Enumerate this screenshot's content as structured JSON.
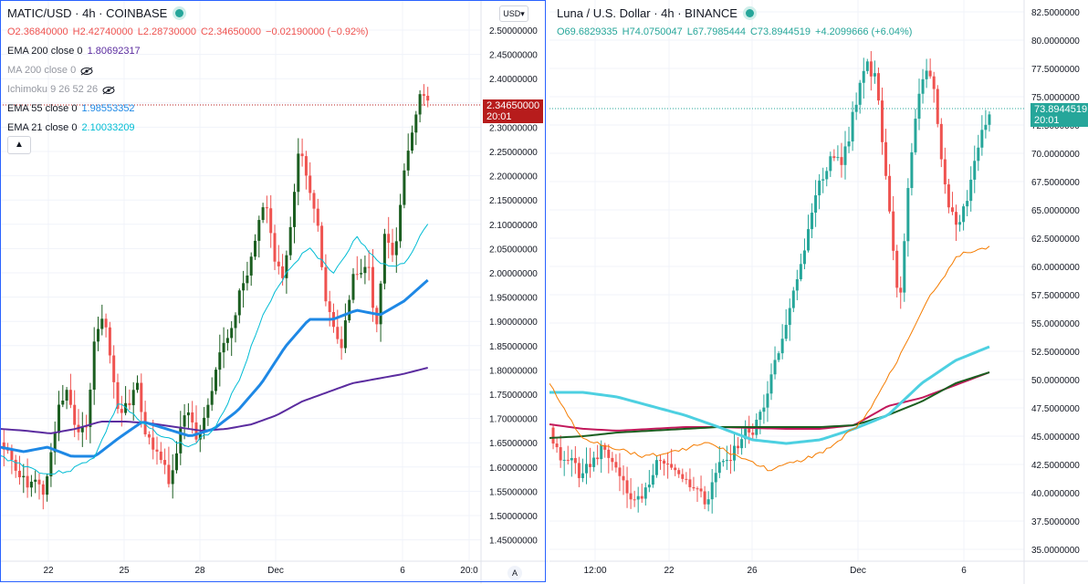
{
  "left": {
    "symbol": "MATIC/USD · 4h · COINBASE",
    "ohlc": {
      "o": "O2.36840000",
      "h": "H2.42740000",
      "l": "L2.28730000",
      "c": "C2.34650000",
      "chg": "−0.02190000 (−0.92%)"
    },
    "indicators": [
      {
        "label": "EMA 200 close 0",
        "value": "1.80692317",
        "color": "#5b2c9f",
        "hidden": false
      },
      {
        "label": "MA 200 close 0",
        "value": "",
        "color": "#9598a1",
        "hidden": true
      },
      {
        "label": "Ichimoku 9 26 52 26",
        "value": "",
        "color": "#9598a1",
        "hidden": true
      },
      {
        "label": "EMA 55 close 0",
        "value": "1.98553352",
        "color": "#1e88e5",
        "hidden": false
      },
      {
        "label": "EMA 21 close 0",
        "value": "2.10033209",
        "color": "#00bcd4",
        "hidden": false
      }
    ],
    "currency_button": "USD",
    "auto_button": "A",
    "last_price": "2.34650000",
    "countdown": "20:01",
    "y_ticks": [
      "2.50000000",
      "2.45000000",
      "2.40000000",
      "2.35000000",
      "2.30000000",
      "2.25000000",
      "2.20000000",
      "2.15000000",
      "2.10000000",
      "2.05000000",
      "2.00000000",
      "1.95000000",
      "1.90000000",
      "1.85000000",
      "1.80000000",
      "1.75000000",
      "1.70000000",
      "1.65000000",
      "1.60000000",
      "1.55000000",
      "1.50000000",
      "1.45000000"
    ],
    "x_ticks": [
      "22",
      "25",
      "28",
      "Dec",
      "6",
      "20:0"
    ]
  },
  "right": {
    "symbol": "Luna / U.S. Dollar · 4h · BINANCE",
    "ohlc": {
      "o": "O69.6829335",
      "h": "H74.0750047",
      "l": "L67.7985444",
      "c": "C73.8944519",
      "chg": "+4.2099666 (+6.04%)"
    },
    "last_price": "73.8944519",
    "countdown": "20:01",
    "y_ticks": [
      "82.5000000",
      "80.0000000",
      "77.5000000",
      "75.0000000",
      "72.5000000",
      "70.0000000",
      "67.5000000",
      "65.0000000",
      "62.5000000",
      "60.0000000",
      "57.5000000",
      "55.0000000",
      "52.5000000",
      "50.0000000",
      "47.5000000",
      "45.0000000",
      "42.5000000",
      "40.0000000",
      "37.5000000",
      "35.0000000"
    ],
    "x_ticks": [
      "12:00",
      "22",
      "26",
      "Dec",
      "6"
    ]
  },
  "colors": {
    "up": "#26a69a",
    "down": "#ef5350",
    "up_left": "#1b5e20",
    "grid": "#f0f3fa"
  }
}
